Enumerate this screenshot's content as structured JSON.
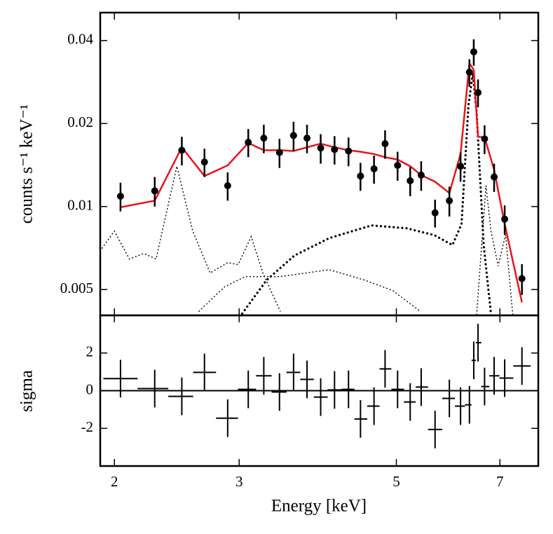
{
  "chart_data": [
    {
      "type": "spectrum",
      "ylabel": "counts s⁻¹ keV⁻¹",
      "xlog": true,
      "ylog": true,
      "xlim": [
        1.91,
        7.93
      ],
      "ylim": [
        0.00403,
        0.0505
      ],
      "yticks": [
        0.005,
        0.01,
        0.02,
        0.04
      ],
      "point_color": "#000000",
      "model_color": "#e8141a",
      "x": [
        2.04,
        2.28,
        2.49,
        2.68,
        2.89,
        3.09,
        3.25,
        3.42,
        3.58,
        3.74,
        3.91,
        4.09,
        4.28,
        4.45,
        4.65,
        4.82,
        5.02,
        5.23,
        5.42,
        5.67,
        5.94,
        6.16,
        6.34,
        6.43,
        6.52,
        6.66,
        6.87,
        7.11,
        7.52
      ],
      "values": [
        0.0109,
        0.0114,
        0.016,
        0.0145,
        0.0119,
        0.0171,
        0.0177,
        0.0157,
        0.0181,
        0.0177,
        0.0163,
        0.0161,
        0.0159,
        0.0129,
        0.0137,
        0.0169,
        0.0141,
        0.0124,
        0.013,
        0.00949,
        0.0105,
        0.014,
        0.0307,
        0.0364,
        0.0259,
        0.0176,
        0.0128,
        0.009,
        0.00548
      ],
      "errors": [
        0.0013,
        0.0014,
        0.0019,
        0.0017,
        0.0014,
        0.002,
        0.0021,
        0.0019,
        0.0022,
        0.0021,
        0.002,
        0.0019,
        0.0019,
        0.0015,
        0.0016,
        0.002,
        0.0017,
        0.0015,
        0.0016,
        0.0011,
        0.0013,
        0.0017,
        0.0035,
        0.004,
        0.003,
        0.0021,
        0.0015,
        0.0011,
        0.0007
      ],
      "model_values": [
        0.00994,
        0.0105,
        0.0164,
        0.0129,
        0.0141,
        0.017,
        0.016,
        0.016,
        0.0159,
        0.0164,
        0.0169,
        0.0164,
        0.016,
        0.0158,
        0.0155,
        0.0151,
        0.0148,
        0.014,
        0.013,
        0.0123,
        0.0112,
        0.0155,
        0.0331,
        0.0313,
        0.0179,
        0.0178,
        0.0136,
        0.00864,
        0.00449
      ],
      "components": [
        {
          "style": "thin",
          "x": [
            1.92,
            2.0,
            2.1,
            2.2,
            2.29,
            2.45,
            2.58,
            2.73,
            2.89,
            2.99,
            3.12,
            3.24,
            3.43
          ],
          "values": [
            0.00704,
            0.00815,
            0.00645,
            0.00676,
            0.00645,
            0.014,
            0.00815,
            0.00574,
            0.00626,
            0.00616,
            0.00778,
            0.00574,
            0.00416
          ]
        },
        {
          "style": "thick",
          "x": [
            3.03,
            3.28,
            3.59,
            4.02,
            4.61,
            5.17,
            5.66,
            6.0,
            6.18,
            6.32,
            6.41,
            6.49,
            6.64,
            6.8
          ],
          "values": [
            0.00409,
            0.00541,
            0.00664,
            0.00768,
            0.00854,
            0.00834,
            0.00787,
            0.00725,
            0.00864,
            0.0233,
            0.0304,
            0.022,
            0.00725,
            0.00409
          ]
        },
        {
          "style": "thin",
          "x": [
            2.63,
            2.86,
            3.06,
            3.43,
            4.02,
            4.51,
            4.94,
            5.41
          ],
          "values": [
            0.00416,
            0.00511,
            0.00557,
            0.00557,
            0.0059,
            0.00541,
            0.00496,
            0.00416
          ]
        },
        {
          "style": "thin",
          "x": [
            6.49,
            6.69,
            6.8,
            6.96,
            7.13,
            7.3
          ],
          "values": [
            0.00404,
            0.0119,
            0.00815,
            0.00609,
            0.00791,
            0.00404
          ]
        }
      ]
    },
    {
      "type": "residual",
      "xlabel": "Energy [keV]",
      "ylabel": "sigma",
      "xlog": true,
      "xlim": [
        1.91,
        7.93
      ],
      "xticks": [
        2,
        3,
        5,
        7
      ],
      "ylim": [
        -4,
        4
      ],
      "yticks": [
        -2,
        0,
        2
      ],
      "error": 1,
      "color": "#000000",
      "x": [
        2.04,
        2.28,
        2.49,
        2.68,
        2.89,
        3.09,
        3.25,
        3.42,
        3.58,
        3.74,
        3.91,
        4.09,
        4.28,
        4.45,
        4.65,
        4.82,
        5.02,
        5.23,
        5.42,
        5.67,
        5.94,
        6.16,
        6.34,
        6.43,
        6.52,
        6.66,
        6.87,
        7.11,
        7.52
      ],
      "values": [
        0.64,
        0.11,
        -0.3,
        0.97,
        -1.46,
        0.07,
        0.79,
        -0.07,
        0.97,
        0.6,
        -0.34,
        0.04,
        0.07,
        -1.5,
        -0.82,
        1.16,
        0.07,
        -0.6,
        0.19,
        -2.06,
        -0.41,
        -0.82,
        -0.75,
        1.61,
        2.55,
        0.22,
        0.79,
        0.67,
        1.31
      ]
    }
  ]
}
